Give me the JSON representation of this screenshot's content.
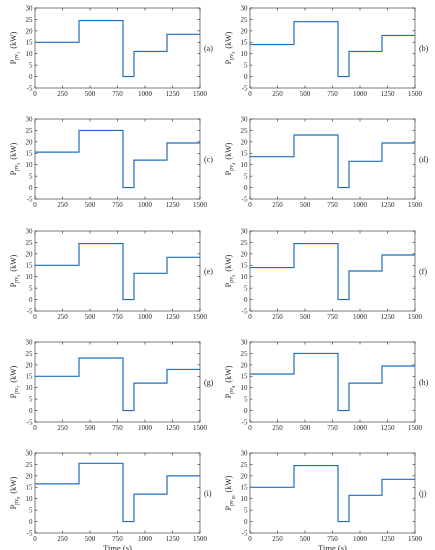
{
  "line_color": "#1f6fbf",
  "chart_data": [
    {
      "type": "line",
      "panel": "(a)",
      "ylabel": "P",
      "ylabel_sub": "pv",
      "ylabel_subsub": "1",
      "ylabel_unit": "(kW)",
      "xlabel": "",
      "xlim": [
        0,
        1500
      ],
      "ylim": [
        -5,
        30
      ],
      "xticks": [
        0,
        250,
        500,
        750,
        1000,
        1250,
        1500
      ],
      "yticks": [
        -5,
        0,
        5,
        10,
        15,
        20,
        25,
        30
      ],
      "series": [
        {
          "x": [
            0,
            400,
            400,
            800,
            800,
            900,
            900,
            1200,
            1200,
            1500
          ],
          "y": [
            15,
            15,
            24.5,
            24.5,
            0,
            0,
            11,
            11,
            18.5,
            18.5
          ]
        }
      ]
    },
    {
      "type": "line",
      "panel": "(b)",
      "ylabel": "P",
      "ylabel_sub": "pv",
      "ylabel_subsub": "2",
      "ylabel_unit": "(kW)",
      "xlabel": "",
      "xlim": [
        0,
        1500
      ],
      "ylim": [
        -5,
        30
      ],
      "xticks": [
        0,
        250,
        500,
        750,
        1000,
        1250,
        1500
      ],
      "yticks": [
        -5,
        0,
        5,
        10,
        15,
        20,
        25,
        30
      ],
      "series": [
        {
          "x": [
            0,
            400,
            400,
            800,
            800,
            900,
            900,
            1200,
            1200,
            1500
          ],
          "y": [
            14,
            14,
            24,
            24,
            0,
            0,
            11,
            11,
            18,
            18
          ]
        }
      ]
    },
    {
      "type": "line",
      "panel": "(c)",
      "ylabel": "P",
      "ylabel_sub": "pv",
      "ylabel_subsub": "3",
      "ylabel_unit": "(kW)",
      "xlabel": "",
      "xlim": [
        0,
        1500
      ],
      "ylim": [
        -5,
        30
      ],
      "xticks": [
        0,
        250,
        500,
        750,
        1000,
        1250,
        1500
      ],
      "yticks": [
        -5,
        0,
        5,
        10,
        15,
        20,
        25,
        30
      ],
      "series": [
        {
          "x": [
            0,
            400,
            400,
            800,
            800,
            900,
            900,
            1200,
            1200,
            1500
          ],
          "y": [
            15.5,
            15.5,
            25,
            25,
            0,
            0,
            12,
            12,
            19.5,
            19.5
          ]
        }
      ]
    },
    {
      "type": "line",
      "panel": "(d)",
      "ylabel": "P",
      "ylabel_sub": "pv",
      "ylabel_subsub": "4",
      "ylabel_unit": "(kW)",
      "xlabel": "",
      "xlim": [
        0,
        1500
      ],
      "ylim": [
        -5,
        30
      ],
      "xticks": [
        0,
        250,
        500,
        750,
        1000,
        1250,
        1500
      ],
      "yticks": [
        -5,
        0,
        5,
        10,
        15,
        20,
        25,
        30
      ],
      "series": [
        {
          "x": [
            0,
            400,
            400,
            800,
            800,
            900,
            900,
            1200,
            1200,
            1500
          ],
          "y": [
            13.5,
            13.5,
            23,
            23,
            0,
            0,
            11.5,
            11.5,
            19.5,
            19.5
          ]
        }
      ]
    },
    {
      "type": "line",
      "panel": "(e)",
      "ylabel": "P",
      "ylabel_sub": "pv",
      "ylabel_subsub": "5",
      "ylabel_unit": "(kW)",
      "xlabel": "",
      "xlim": [
        0,
        1500
      ],
      "ylim": [
        -5,
        30
      ],
      "xticks": [
        0,
        250,
        500,
        750,
        1000,
        1250,
        1500
      ],
      "yticks": [
        -5,
        0,
        5,
        10,
        15,
        20,
        25,
        30
      ],
      "series": [
        {
          "x": [
            0,
            400,
            400,
            800,
            800,
            900,
            900,
            1200,
            1200,
            1500
          ],
          "y": [
            15,
            15,
            24.5,
            24.5,
            0,
            0,
            11.5,
            11.5,
            18.5,
            18.5
          ]
        }
      ]
    },
    {
      "type": "line",
      "panel": "(f)",
      "ylabel": "P",
      "ylabel_sub": "pv",
      "ylabel_subsub": "6",
      "ylabel_unit": "(kW)",
      "xlabel": "",
      "xlim": [
        0,
        1500
      ],
      "ylim": [
        -5,
        30
      ],
      "xticks": [
        0,
        250,
        500,
        750,
        1000,
        1250,
        1500
      ],
      "yticks": [
        -5,
        0,
        5,
        10,
        15,
        20,
        25,
        30
      ],
      "series": [
        {
          "x": [
            0,
            400,
            400,
            800,
            800,
            900,
            900,
            1200,
            1200,
            1500
          ],
          "y": [
            14,
            14,
            24.5,
            24.5,
            0,
            0,
            12.5,
            12.5,
            19.5,
            19.5
          ]
        }
      ]
    },
    {
      "type": "line",
      "panel": "(g)",
      "ylabel": "P",
      "ylabel_sub": "pv",
      "ylabel_subsub": "7",
      "ylabel_unit": "(kW)",
      "xlabel": "",
      "xlim": [
        0,
        1500
      ],
      "ylim": [
        -5,
        30
      ],
      "xticks": [
        0,
        250,
        500,
        750,
        1000,
        1250,
        1500
      ],
      "yticks": [
        -5,
        0,
        5,
        10,
        15,
        20,
        25,
        30
      ],
      "series": [
        {
          "x": [
            0,
            400,
            400,
            800,
            800,
            900,
            900,
            1200,
            1200,
            1500
          ],
          "y": [
            15,
            15,
            23,
            23,
            0,
            0,
            12,
            12,
            18,
            18
          ]
        }
      ]
    },
    {
      "type": "line",
      "panel": "(h)",
      "ylabel": "P",
      "ylabel_sub": "pv",
      "ylabel_subsub": "8",
      "ylabel_unit": "(kW)",
      "xlabel": "",
      "xlim": [
        0,
        1500
      ],
      "ylim": [
        -5,
        30
      ],
      "xticks": [
        0,
        250,
        500,
        750,
        1000,
        1250,
        1500
      ],
      "yticks": [
        -5,
        0,
        5,
        10,
        15,
        20,
        25,
        30
      ],
      "series": [
        {
          "x": [
            0,
            400,
            400,
            800,
            800,
            900,
            900,
            1200,
            1200,
            1500
          ],
          "y": [
            16,
            16,
            25,
            25,
            0,
            0,
            12,
            12,
            19.5,
            19.5
          ]
        }
      ]
    },
    {
      "type": "line",
      "panel": "(i)",
      "ylabel": "P",
      "ylabel_sub": "pv",
      "ylabel_subsub": "9",
      "ylabel_unit": "(kW)",
      "xlabel": "Time (s)",
      "xlim": [
        0,
        1500
      ],
      "ylim": [
        -5,
        30
      ],
      "xticks": [
        0,
        250,
        500,
        750,
        1000,
        1250,
        1500
      ],
      "yticks": [
        -5,
        0,
        5,
        10,
        15,
        20,
        25,
        30
      ],
      "series": [
        {
          "x": [
            0,
            400,
            400,
            800,
            800,
            900,
            900,
            1200,
            1200,
            1500
          ],
          "y": [
            16.5,
            16.5,
            25.5,
            25.5,
            0,
            0,
            12,
            12,
            20,
            20
          ]
        }
      ]
    },
    {
      "type": "line",
      "panel": "(j)",
      "ylabel": "P",
      "ylabel_sub": "pv",
      "ylabel_subsub": "10",
      "ylabel_unit": "(kW)",
      "xlabel": "Time (s)",
      "xlim": [
        0,
        1500
      ],
      "ylim": [
        -5,
        30
      ],
      "xticks": [
        0,
        250,
        500,
        750,
        1000,
        1250,
        1500
      ],
      "yticks": [
        -5,
        0,
        5,
        10,
        15,
        20,
        25,
        30
      ],
      "series": [
        {
          "x": [
            0,
            400,
            400,
            800,
            800,
            900,
            900,
            1200,
            1200,
            1500
          ],
          "y": [
            15,
            15,
            24.5,
            24.5,
            0,
            0,
            11.5,
            11.5,
            18.5,
            18.5
          ]
        }
      ]
    }
  ]
}
